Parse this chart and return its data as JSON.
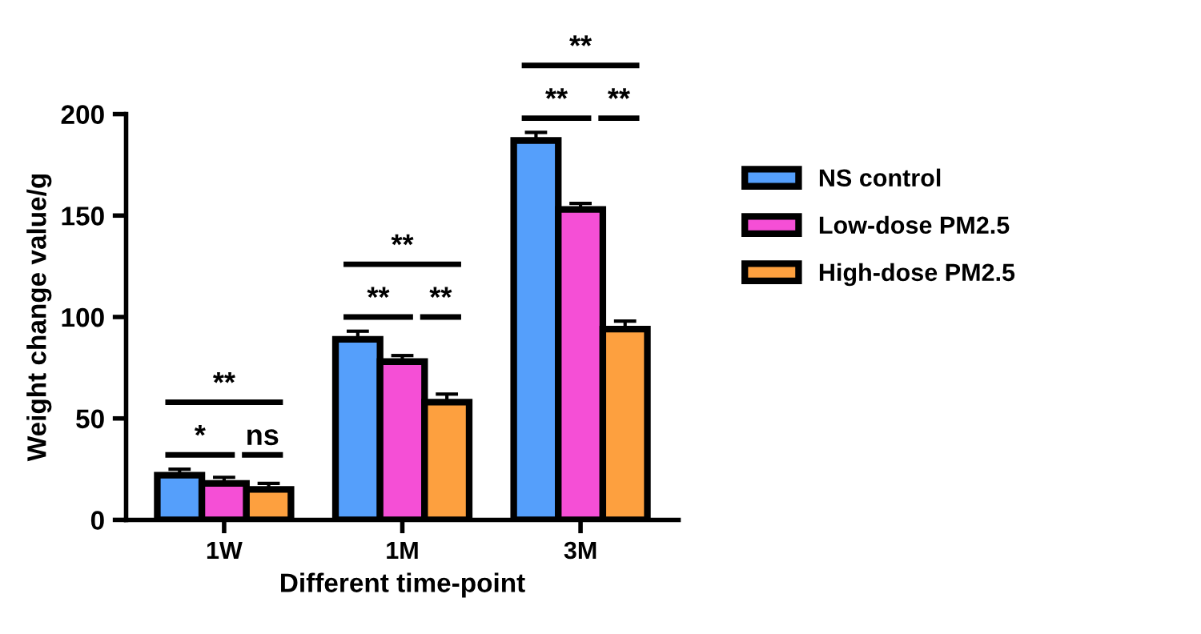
{
  "chart_data": {
    "type": "bar",
    "xlabel": "Different time-point",
    "ylabel": "Weight change value/g",
    "categories": [
      "1W",
      "1M",
      "3M"
    ],
    "series": [
      {
        "name": "NS control",
        "color": "#559ffb",
        "values": [
          22,
          89,
          187
        ],
        "errors": [
          3,
          4,
          4
        ]
      },
      {
        "name": "Low-dose PM2.5",
        "color": "#f54fd6",
        "values": [
          18,
          78,
          153
        ],
        "errors": [
          3,
          3,
          3
        ]
      },
      {
        "name": "High-dose PM2.5",
        "color": "#fda03f",
        "values": [
          15,
          58,
          94
        ],
        "errors": [
          3,
          4,
          4
        ]
      }
    ],
    "ylim": [
      0,
      200
    ],
    "yticks": [
      0,
      50,
      100,
      150,
      200
    ],
    "grid": false,
    "legend": "right",
    "annotations": [
      "*",
      "ns",
      "**",
      "**",
      "**",
      "**",
      "**",
      "**",
      "**"
    ]
  }
}
